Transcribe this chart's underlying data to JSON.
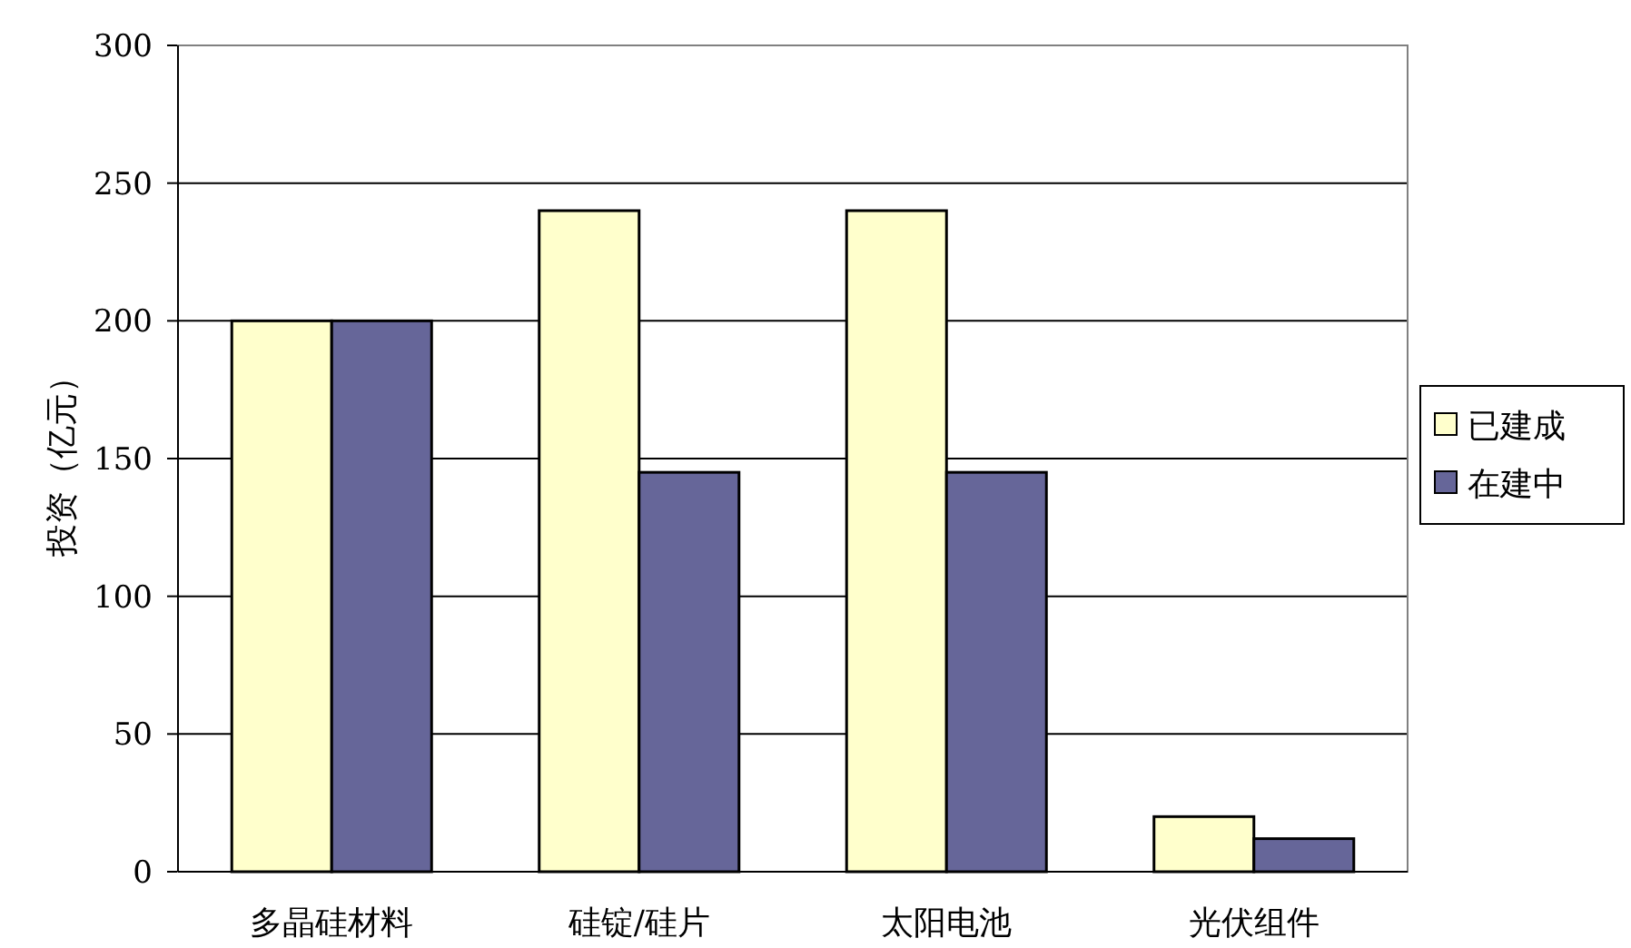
{
  "chart_data": {
    "type": "bar",
    "ylabel": "投资（亿元）",
    "categories": [
      "多晶硅材料",
      "硅锭/硅片",
      "太阳电池",
      "光伏组件"
    ],
    "series": [
      {
        "name": "已建成",
        "color": "#ffffcc",
        "values": [
          200,
          240,
          240,
          20
        ]
      },
      {
        "name": "在建中",
        "color": "#666699",
        "values": [
          200,
          145,
          145,
          12
        ]
      }
    ],
    "ylim": [
      0,
      300
    ],
    "yticks": [
      0,
      50,
      100,
      150,
      200,
      250,
      300
    ],
    "grid": "y",
    "legend": "right"
  }
}
